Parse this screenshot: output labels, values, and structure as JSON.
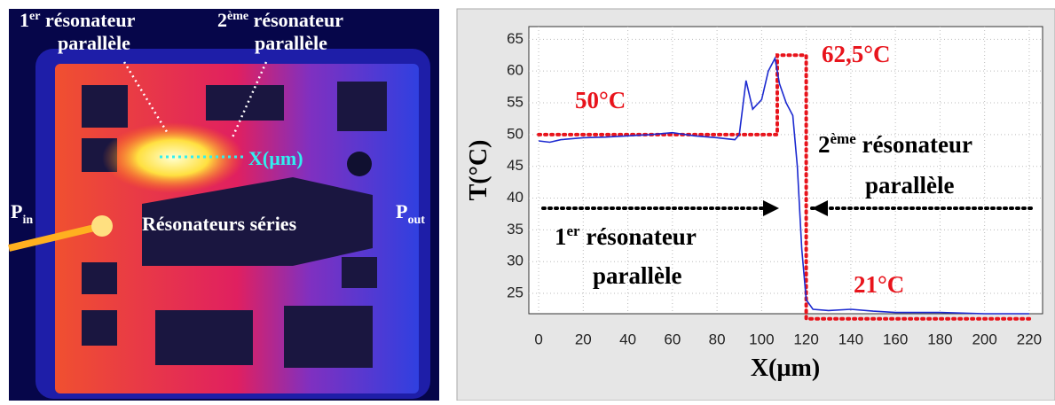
{
  "thermal_image": {
    "first_resonator": [
      "1",
      "er",
      " résonateur",
      "parallèle"
    ],
    "second_resonator": [
      "2",
      "ème",
      " résonateur",
      "parallèle"
    ],
    "axis_label": "X(µm)",
    "series_label": "Résonateurs séries",
    "input": [
      "P",
      "in"
    ],
    "output": [
      "P",
      "out"
    ]
  },
  "chart_data": {
    "type": "line",
    "x": [
      0,
      5,
      10,
      20,
      30,
      40,
      50,
      60,
      70,
      80,
      88,
      90,
      93,
      96,
      100,
      103,
      106,
      108,
      111,
      114,
      116,
      118,
      120,
      123,
      130,
      140,
      150,
      160,
      180,
      200,
      220
    ],
    "series": [
      {
        "color": "#1c2ad0",
        "values": [
          49,
          48.8,
          49.2,
          49.5,
          49.6,
          49.8,
          50,
          50.3,
          49.8,
          49.5,
          49.2,
          50,
          58.5,
          54,
          55.5,
          60,
          62,
          58,
          55,
          53,
          45,
          32,
          24,
          22.5,
          22.3,
          22.5,
          22.2,
          22,
          22,
          21.8,
          21.8
        ]
      }
    ],
    "reference": {
      "color": "#e8141c",
      "x": [
        0,
        107,
        107,
        120,
        120,
        222
      ],
      "values": [
        50,
        50,
        62.5,
        62.5,
        21,
        21
      ]
    },
    "annotations": {
      "start_temp": "50°C",
      "peak_temp": "62,5°C",
      "end_temp": "21°C",
      "second_resonator": [
        "2",
        "ème",
        " résonateur",
        "parallèle"
      ],
      "first_resonator": [
        "1",
        "er",
        " résonateur",
        "parallèle"
      ]
    },
    "xlabel": "X(µm)",
    "ylabel": "T(°C)",
    "xlim": [
      -4.4,
      226
    ],
    "ylim": [
      21.8,
      67
    ],
    "xticks": [
      0,
      20,
      40,
      60,
      80,
      100,
      120,
      140,
      160,
      180,
      200,
      220
    ],
    "yticks": [
      25,
      30,
      35,
      40,
      45,
      50,
      55,
      60,
      65
    ],
    "grid": true
  }
}
